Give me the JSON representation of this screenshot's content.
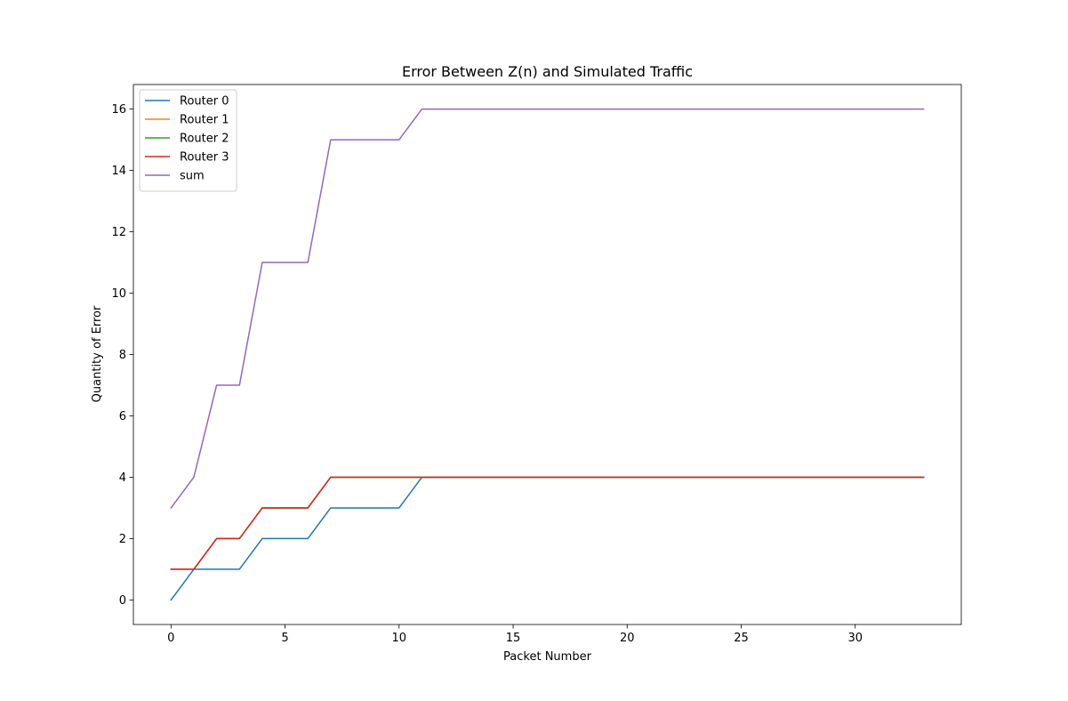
{
  "chart_data": {
    "type": "line",
    "title": "Error Between Z(n) and Simulated Traffic",
    "xlabel": "Packet Number",
    "ylabel": "Quantity of Error",
    "xlim": [
      -1.65,
      34.65
    ],
    "ylim": [
      -0.8,
      16.8
    ],
    "xticks": [
      0,
      5,
      10,
      15,
      20,
      25,
      30
    ],
    "yticks": [
      0,
      2,
      4,
      6,
      8,
      10,
      12,
      14,
      16
    ],
    "grid": false,
    "legend_position": "top-left",
    "x": [
      0,
      1,
      2,
      3,
      4,
      5,
      6,
      7,
      8,
      9,
      10,
      11,
      12,
      13,
      14,
      15,
      16,
      17,
      18,
      19,
      20,
      21,
      22,
      23,
      24,
      25,
      26,
      27,
      28,
      29,
      30,
      31,
      32,
      33
    ],
    "series": [
      {
        "name": "Router 0",
        "color": "#1f77b4",
        "values": [
          0,
          1,
          1,
          1,
          2,
          2,
          2,
          3,
          3,
          3,
          3,
          4,
          4,
          4,
          4,
          4,
          4,
          4,
          4,
          4,
          4,
          4,
          4,
          4,
          4,
          4,
          4,
          4,
          4,
          4,
          4,
          4,
          4,
          4
        ]
      },
      {
        "name": "Router 1",
        "color": "#ff7f0e",
        "values": [
          1,
          1,
          2,
          2,
          3,
          3,
          3,
          4,
          4,
          4,
          4,
          4,
          4,
          4,
          4,
          4,
          4,
          4,
          4,
          4,
          4,
          4,
          4,
          4,
          4,
          4,
          4,
          4,
          4,
          4,
          4,
          4,
          4,
          4
        ]
      },
      {
        "name": "Router 2",
        "color": "#2ca02c",
        "values": [
          1,
          1,
          2,
          2,
          3,
          3,
          3,
          4,
          4,
          4,
          4,
          4,
          4,
          4,
          4,
          4,
          4,
          4,
          4,
          4,
          4,
          4,
          4,
          4,
          4,
          4,
          4,
          4,
          4,
          4,
          4,
          4,
          4,
          4
        ]
      },
      {
        "name": "Router 3",
        "color": "#d62728",
        "values": [
          1,
          1,
          2,
          2,
          3,
          3,
          3,
          4,
          4,
          4,
          4,
          4,
          4,
          4,
          4,
          4,
          4,
          4,
          4,
          4,
          4,
          4,
          4,
          4,
          4,
          4,
          4,
          4,
          4,
          4,
          4,
          4,
          4,
          4
        ]
      },
      {
        "name": "sum",
        "color": "#9467bd",
        "values": [
          3,
          4,
          7,
          7,
          11,
          11,
          11,
          15,
          15,
          15,
          15,
          16,
          16,
          16,
          16,
          16,
          16,
          16,
          16,
          16,
          16,
          16,
          16,
          16,
          16,
          16,
          16,
          16,
          16,
          16,
          16,
          16,
          16,
          16
        ]
      }
    ]
  }
}
